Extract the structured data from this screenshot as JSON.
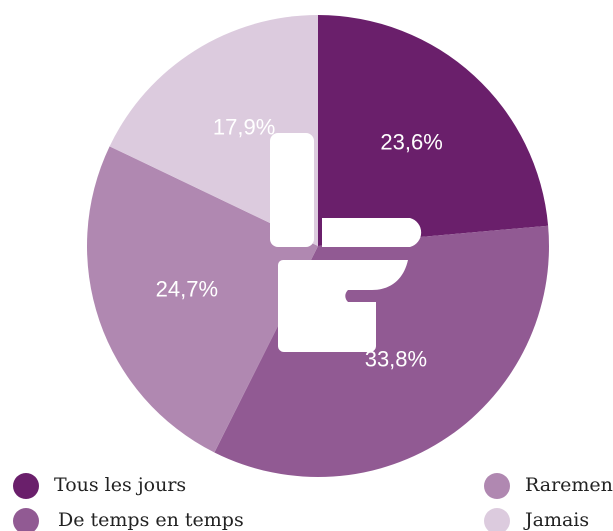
{
  "chart_data": {
    "type": "pie",
    "categories": [
      "Tous les jours",
      "De temps en temps",
      "Rarement",
      "Jamais"
    ],
    "values": [
      23.6,
      33.8,
      24.7,
      17.9
    ],
    "value_labels": [
      "23,6%",
      "33,8%",
      "24,7%",
      "17,9%"
    ],
    "colors": [
      "#6a1f6b",
      "#915a93",
      "#b088b1",
      "#dccbde"
    ],
    "label_colors": [
      "#ffffff",
      "#ffffff",
      "#ffffff",
      "#8a5a8c"
    ]
  }
}
